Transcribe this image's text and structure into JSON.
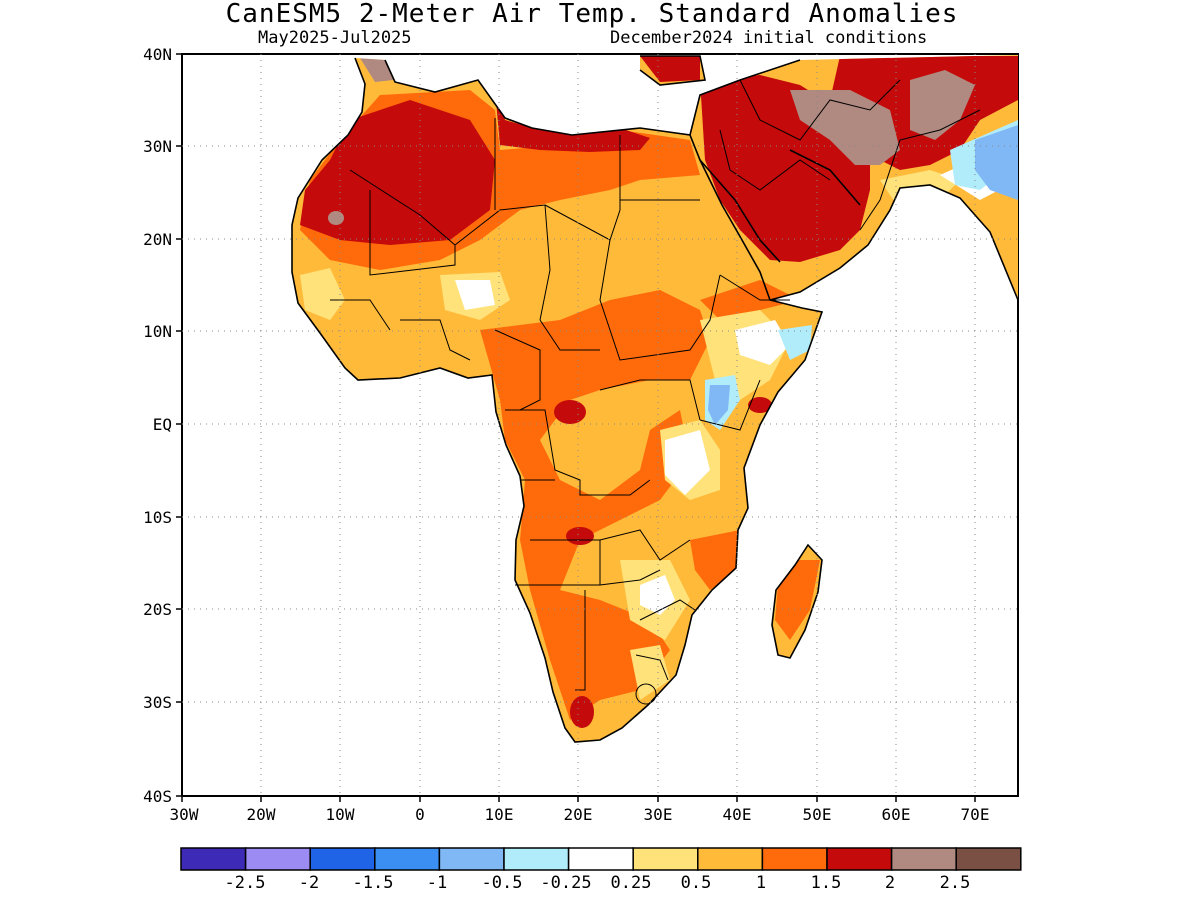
{
  "title": "CanESM5 2-Meter Air Temp. Standard Anomalies",
  "subtitle_left": "May2025-Jul2025",
  "subtitle_right": "December2024 initial conditions",
  "lat_ticks": [
    "40N",
    "30N",
    "20N",
    "10N",
    "EQ",
    "10S",
    "20S",
    "30S",
    "40S"
  ],
  "lon_ticks": [
    "30W",
    "20W",
    "10W",
    "0",
    "10E",
    "20E",
    "30E",
    "40E",
    "50E",
    "60E",
    "70E"
  ],
  "colorbar": {
    "colors": [
      "#3d2bb8",
      "#9b8bf2",
      "#1f64e6",
      "#3b8ff2",
      "#7fb8f5",
      "#b0ecfa",
      "#ffffff",
      "#ffe27a",
      "#ffba3a",
      "#ff6a0a",
      "#c40a0a",
      "#b08a80",
      "#7a5044"
    ],
    "labels": [
      "-2.5",
      "-2",
      "-1.5",
      "-1",
      "-0.5",
      "-0.25",
      "0.25",
      "0.5",
      "1",
      "1.5",
      "2",
      "2.5"
    ]
  }
}
